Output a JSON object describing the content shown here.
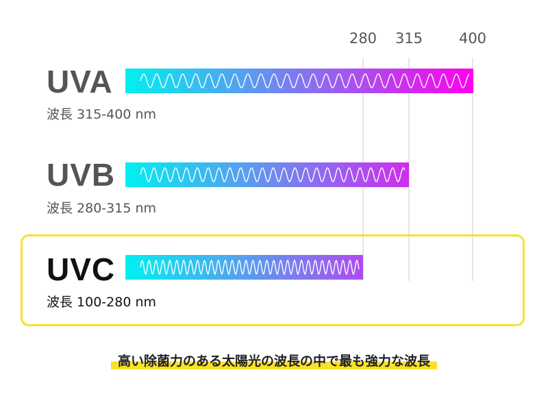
{
  "scale": {
    "ticks": [
      {
        "label": "280",
        "value": 280
      },
      {
        "label": "315",
        "value": 315
      },
      {
        "label": "400",
        "value": 400
      }
    ]
  },
  "bands": [
    {
      "id": "uva",
      "name": "UVA",
      "range_label": "波長 315-400 nm",
      "min_nm": 315,
      "max_nm": 400,
      "highlighted": false
    },
    {
      "id": "uvb",
      "name": "UVB",
      "range_label": "波長 280-315 nm",
      "min_nm": 280,
      "max_nm": 315,
      "highlighted": false
    },
    {
      "id": "uvc",
      "name": "UVC",
      "range_label": "波長 100-280 nm",
      "min_nm": 100,
      "max_nm": 280,
      "highlighted": true
    }
  ],
  "tagline": "高い除菌力のある太陽光の波長の中で最も強力な波長",
  "colors": {
    "gradient_start": "#00f0f0",
    "gradient_end": "#ff00ee",
    "highlight": "#f7e12a",
    "label_gray": "#555555",
    "label_dark": "#111111"
  }
}
